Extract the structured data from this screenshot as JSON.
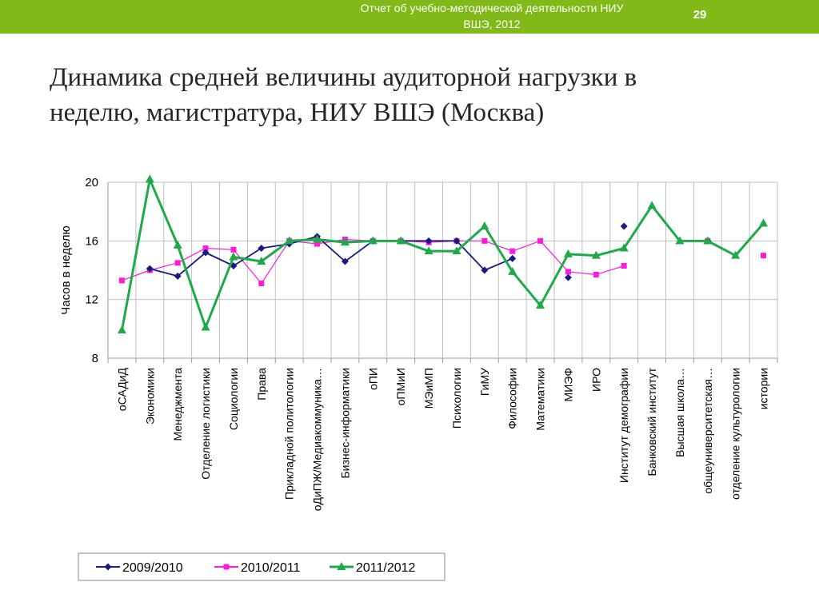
{
  "header": {
    "title_line1": "Отчет об учебно-методической деятельности НИУ",
    "title_line2": "ВШЭ, 2012",
    "page_number": "29"
  },
  "slide": {
    "title_line1": "Динамика средней величины аудиторной нагрузки в",
    "title_line2": "неделю, магистратура, НИУ ВШЭ (Москва)"
  },
  "colors": {
    "header_bar": "#80b918",
    "series_2009": "#1a1a80",
    "series_2010": "#ff1ad9",
    "series_2011": "#1faa4a",
    "grid": "#bfbfbf"
  },
  "chart_data": {
    "type": "line",
    "ylabel": "Часов в неделю",
    "ylim": [
      8,
      20
    ],
    "yticks": [
      8,
      12,
      16,
      20
    ],
    "grid": true,
    "legend_position": "bottom",
    "categories": [
      "оСАДиД",
      "Экономики",
      "Менеджмента",
      "Отделение логистики",
      "Социологии",
      "Права",
      "Прикладной политологии",
      "оДиПЖ/Медиакоммуника…",
      "Бизнес-информатики",
      "оПИ",
      "оПМиИ",
      "МЭиМП",
      "Психологии",
      "ГиМУ",
      "Философии",
      "Математики",
      "МИЭФ",
      "ИРО",
      "Институт демографии",
      "Банковский институт",
      "Высшая школа…",
      "общеуниверситетская…",
      "отделение культурологии",
      "истории"
    ],
    "series": [
      {
        "name": "2009/2010",
        "marker": "diamond",
        "values": [
          null,
          14.1,
          13.6,
          15.2,
          14.3,
          15.5,
          15.8,
          16.3,
          14.6,
          16.0,
          16.0,
          16.0,
          16.0,
          14.0,
          14.8,
          null,
          13.5,
          null,
          17.0,
          null,
          null,
          16.0,
          null,
          null
        ]
      },
      {
        "name": "2010/2011",
        "marker": "square",
        "values": [
          13.3,
          14.0,
          14.5,
          15.5,
          15.4,
          13.1,
          16.0,
          15.8,
          16.1,
          16.0,
          16.0,
          15.9,
          16.0,
          16.0,
          15.3,
          16.0,
          13.9,
          13.7,
          14.3,
          null,
          null,
          16.0,
          null,
          15.0
        ]
      },
      {
        "name": "2011/2012",
        "marker": "triangle",
        "values": [
          9.9,
          20.2,
          15.7,
          10.1,
          14.9,
          14.6,
          16.0,
          16.1,
          15.9,
          16.0,
          16.0,
          15.3,
          15.3,
          17.0,
          13.9,
          11.6,
          15.1,
          15.0,
          15.5,
          18.4,
          16.0,
          16.0,
          15.0,
          17.2
        ]
      }
    ]
  }
}
